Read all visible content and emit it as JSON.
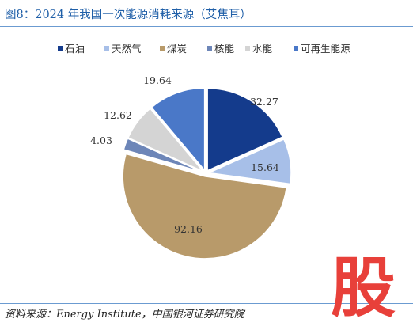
{
  "header": {
    "title": "图8：2024 年我国一次能源消耗来源（艾焦耳）"
  },
  "footer": {
    "source": "资料来源：Energy Institute，中国银河证券研究院"
  },
  "watermark": {
    "text": "股",
    "color": "#e8403a"
  },
  "chart_data": {
    "type": "pie",
    "title": "",
    "legend": "top",
    "slices": [
      {
        "name": "石油",
        "value": 32.27,
        "label": "32.27",
        "color": "#143b8c"
      },
      {
        "name": "天然气",
        "value": 15.64,
        "label": "15.64",
        "color": "#a7bfe8"
      },
      {
        "name": "煤炭",
        "value": 92.16,
        "label": "92.16",
        "color": "#b89a6a"
      },
      {
        "name": "核能",
        "value": 4.03,
        "label": "4.03",
        "color": "#6d86b8"
      },
      {
        "name": "水能",
        "value": 12.62,
        "label": "12.62",
        "color": "#d4d4d4"
      },
      {
        "name": "可再生能源",
        "value": 19.64,
        "label": "19.64",
        "color": "#4a78c8"
      }
    ]
  }
}
